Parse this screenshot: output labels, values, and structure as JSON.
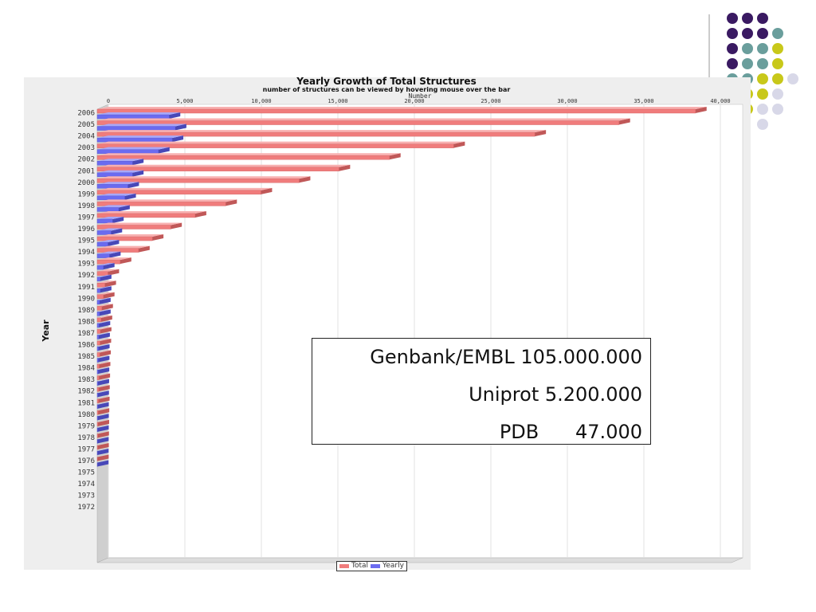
{
  "deco_dots": {
    "colors": {
      "purple": "#3a1a62",
      "teal": "#6a9e9c",
      "yellow": "#c8c81a",
      "lavender": "#d8d8e8"
    },
    "rows": [
      [
        "purple",
        "purple",
        "purple"
      ],
      [
        "purple",
        "purple",
        "purple",
        "teal"
      ],
      [
        "purple",
        "teal",
        "teal",
        "yellow"
      ],
      [
        "purple",
        "teal",
        "teal",
        "yellow"
      ],
      [
        "teal",
        "teal",
        "yellow",
        "yellow",
        "lavender"
      ],
      [
        "yellow",
        "yellow",
        "yellow",
        "lavender"
      ],
      [
        "yellow",
        "yellow",
        "lavender",
        "lavender"
      ],
      [
        "lavender",
        "",
        "lavender"
      ]
    ]
  },
  "chart_data": {
    "type": "bar",
    "orientation": "horizontal",
    "title": "Yearly Growth of Total Structures",
    "subtitle": "number of structures can be viewed by hovering mouse over the bar",
    "xlabel": "Number",
    "ylabel": "Year",
    "xlim": [
      0,
      40000
    ],
    "xticks": [
      0,
      5000,
      10000,
      15000,
      20000,
      25000,
      30000,
      35000,
      40000
    ],
    "xtick_labels": [
      "0",
      "5,000",
      "10,000",
      "15,000",
      "20,000",
      "25,000",
      "30,000",
      "35,000",
      "40,000"
    ],
    "categories": [
      "2006",
      "2005",
      "2004",
      "2003",
      "2002",
      "2001",
      "2000",
      "1999",
      "1998",
      "1997",
      "1996",
      "1995",
      "1994",
      "1993",
      "1992",
      "1991",
      "1990",
      "1989",
      "1988",
      "1987",
      "1986",
      "1985",
      "1984",
      "1983",
      "1982",
      "1981",
      "1980",
      "1979",
      "1978",
      "1977",
      "1976",
      "1975",
      "1974",
      "1973",
      "1972"
    ],
    "series": [
      {
        "name": "Total",
        "color": "#f07c7c",
        "values": [
          39100,
          34100,
          28600,
          23300,
          19100,
          15800,
          13200,
          10700,
          8400,
          6400,
          4800,
          3600,
          2700,
          1500,
          700,
          500,
          400,
          300,
          250,
          200,
          180,
          160,
          130,
          110,
          90,
          80,
          60,
          50,
          40,
          30,
          20,
          0,
          0,
          0,
          0
        ]
      },
      {
        "name": "Yearly",
        "color": "#6b6bf0",
        "values": [
          4700,
          5100,
          4900,
          4000,
          2300,
          2300,
          2000,
          1800,
          1400,
          1000,
          900,
          700,
          800,
          400,
          200,
          200,
          150,
          150,
          120,
          100,
          80,
          70,
          60,
          50,
          40,
          30,
          30,
          25,
          20,
          15,
          10,
          0,
          0,
          0,
          0
        ]
      }
    ],
    "grid": true,
    "legend": "bottom"
  },
  "infobox": {
    "line1": "Genbank/EMBL 105.000.000",
    "line2": "Uniprot 5.200.000",
    "line3": "PDB      47.000"
  }
}
